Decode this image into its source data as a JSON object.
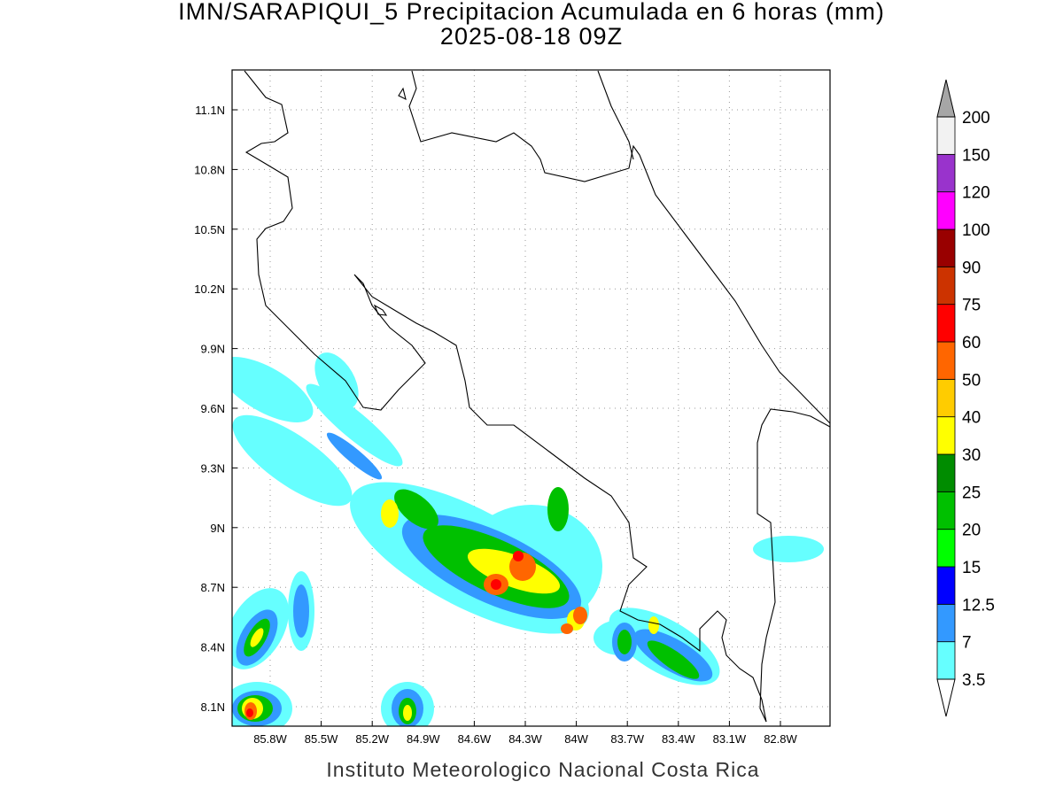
{
  "title": "IMN/SARAPIQUI_5 Precipitacion Acumulada en 6 horas (mm)",
  "subtitle": "2025-08-18 09Z",
  "footer": "Instituto Meteorologico Nacional Costa Rica",
  "lat_labels": [
    "11.1N",
    "10.8N",
    "10.5N",
    "10.2N",
    "9.9N",
    "9.6N",
    "9.3N",
    "9N",
    "8.7N",
    "8.4N",
    "8.1N"
  ],
  "lon_labels": [
    "85.8W",
    "85.5W",
    "85.2W",
    "84.9W",
    "84.6W",
    "84.3W",
    "84W",
    "83.7W",
    "83.4W",
    "83.1W",
    "82.8W"
  ],
  "colorbar": {
    "levels": [
      3.5,
      7,
      12.5,
      15,
      20,
      25,
      30,
      40,
      50,
      60,
      75,
      90,
      100,
      120,
      150,
      200
    ],
    "colors": [
      "#66ffff",
      "#3399ff",
      "#0000ff",
      "#00ff00",
      "#00c000",
      "#008c00",
      "#ffff00",
      "#ffcc00",
      "#ff6600",
      "#ff0000",
      "#cc3300",
      "#990000",
      "#ff00ff",
      "#9933cc",
      "#f2f2f2"
    ],
    "under_color": "#ffffff",
    "over_color": "#a6a6a6"
  }
}
